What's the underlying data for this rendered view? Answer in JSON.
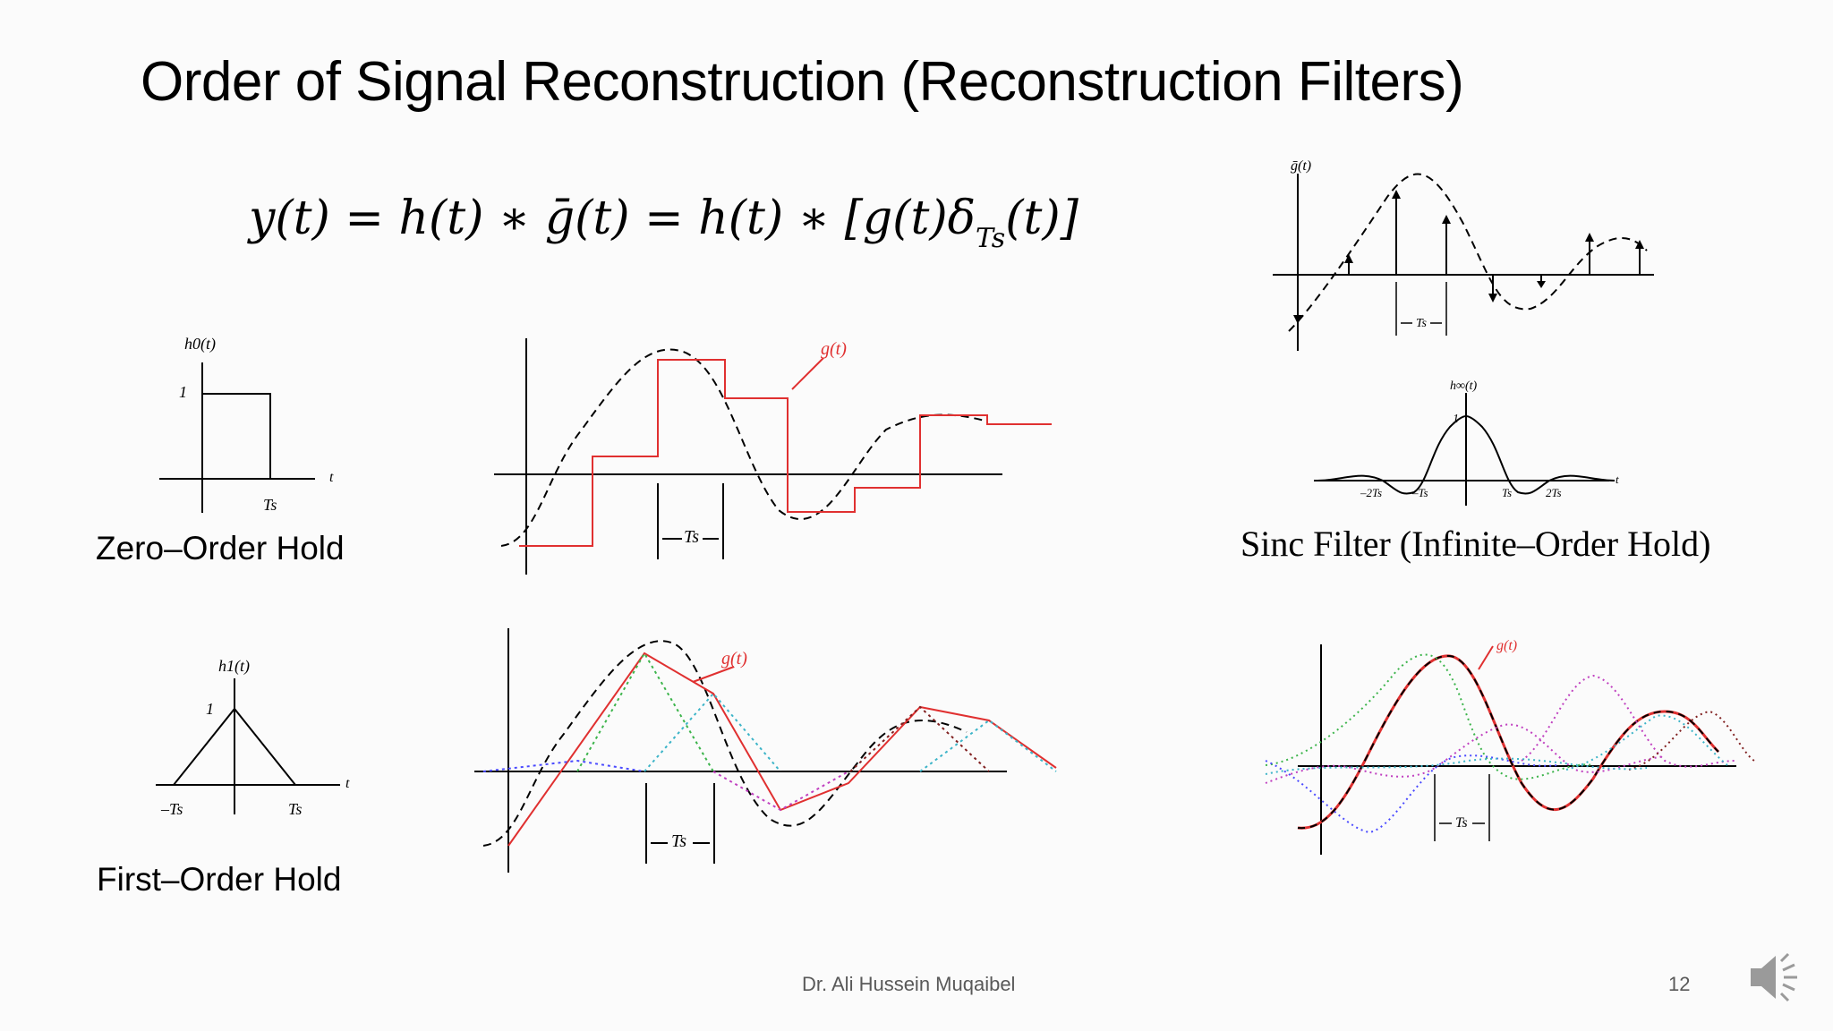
{
  "slide": {
    "title": "Order of Signal Reconstruction (Reconstruction Filters)",
    "equation": {
      "main": "y(t) = h(t) ∗ ḡ(t) = h(t) ∗ [g(t)δ",
      "sub": "Ts",
      "tail": "(t)]"
    },
    "captions": {
      "zoh": "Zero–Order Hold",
      "foh": "First–Order Hold",
      "sinc": "Sinc Filter (Infinite–Order Hold)"
    },
    "footer": {
      "author": "Dr. Ali Hussein Muqaibel",
      "page": "12"
    }
  },
  "figures": {
    "h0": {
      "ylabel": "h0(t)",
      "one": "1",
      "t": "t",
      "Ts": "Ts"
    },
    "h1": {
      "ylabel": "h1(t)",
      "one": "1",
      "t": "t",
      "negTs": "–Ts",
      "Ts": "Ts"
    },
    "hsinc": {
      "ylabel": "h∞(t)",
      "one": "1",
      "t": "t",
      "ticks": [
        "–2Ts",
        "–Ts",
        "Ts",
        "2Ts"
      ]
    },
    "gbar": {
      "ylabel": "ḡ(t)",
      "Ts": "Ts"
    },
    "zoh_signal": {
      "glabel": "g(t)",
      "Ts": "Ts"
    },
    "foh_signal": {
      "glabel": "g(t)",
      "Ts": "Ts"
    },
    "sinc_signal": {
      "glabel": "g(t)",
      "Ts": "Ts"
    }
  },
  "colors": {
    "red": "#e03030",
    "footer": "#595959"
  },
  "icons": {
    "speaker": "speaker-icon"
  }
}
